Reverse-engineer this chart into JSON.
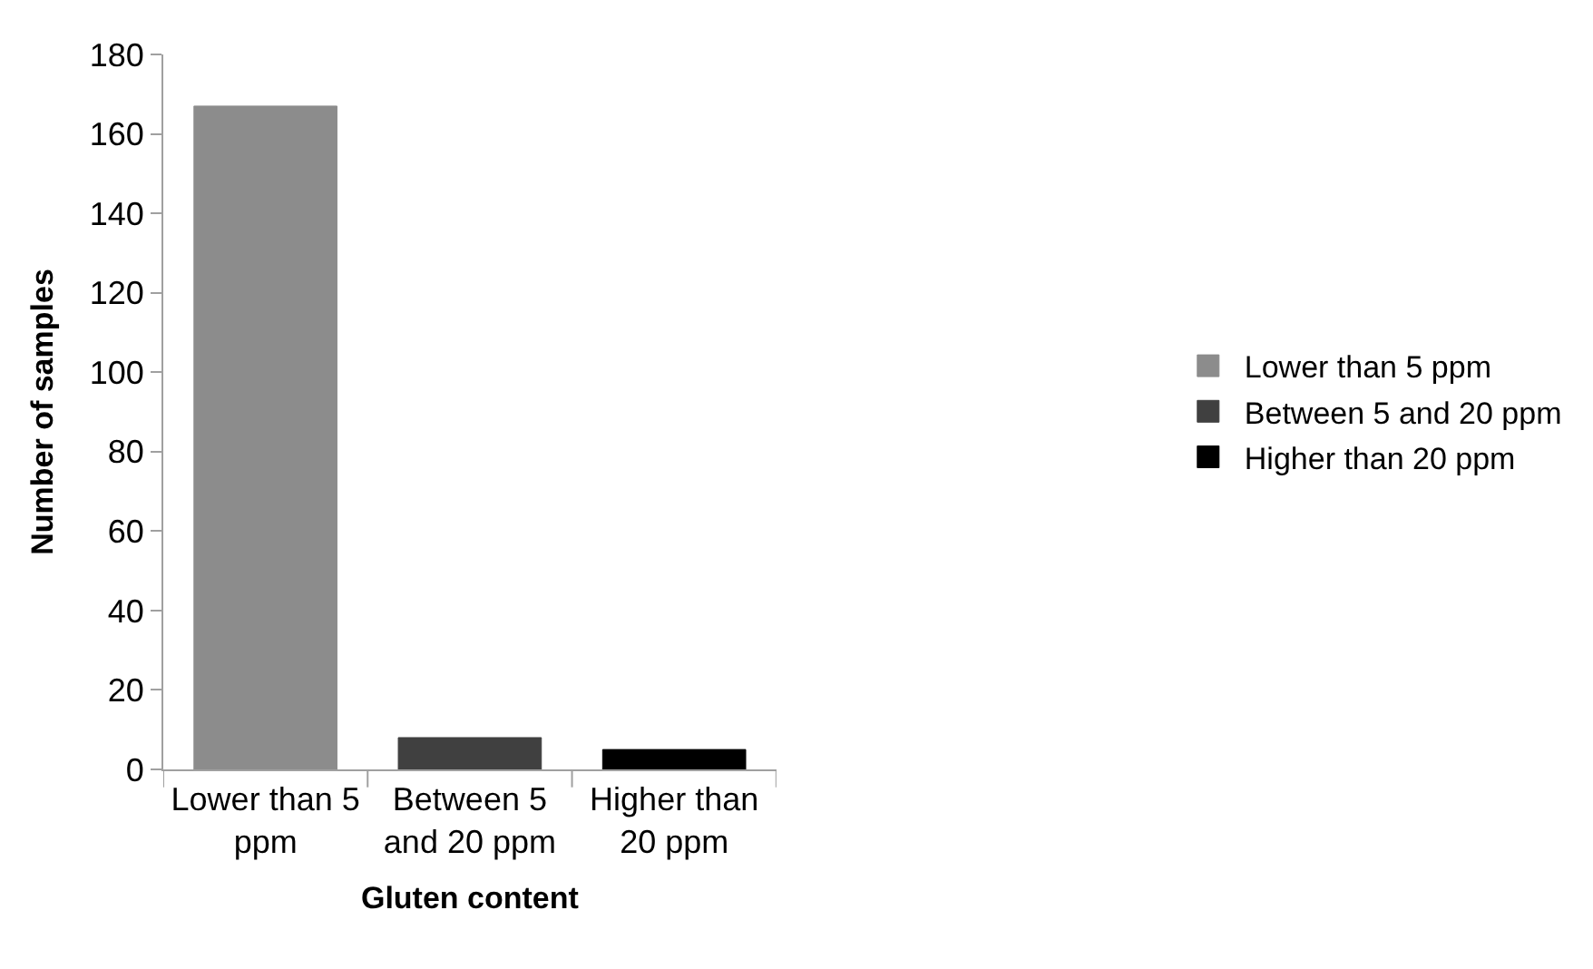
{
  "chart_data": {
    "type": "bar",
    "xlabel": "Gluten content",
    "ylabel": "Number of samples",
    "categories": [
      "Lower than 5 ppm",
      "Between 5 and 20 ppm",
      "Higher than 20 ppm"
    ],
    "series": [
      {
        "name": "Lower than 5 ppm",
        "color": "#8c8c8c",
        "values": [
          167,
          null,
          null
        ]
      },
      {
        "name": "Between 5 and 20 ppm",
        "color": "#404040",
        "values": [
          null,
          8,
          null
        ]
      },
      {
        "name": "Higher than 20 ppm",
        "color": "#000000",
        "values": [
          null,
          null,
          5
        ]
      }
    ],
    "ylim": [
      0,
      180
    ],
    "yticks": [
      0,
      20,
      40,
      60,
      80,
      100,
      120,
      140,
      160,
      180
    ],
    "grid": false,
    "legend": "right"
  }
}
